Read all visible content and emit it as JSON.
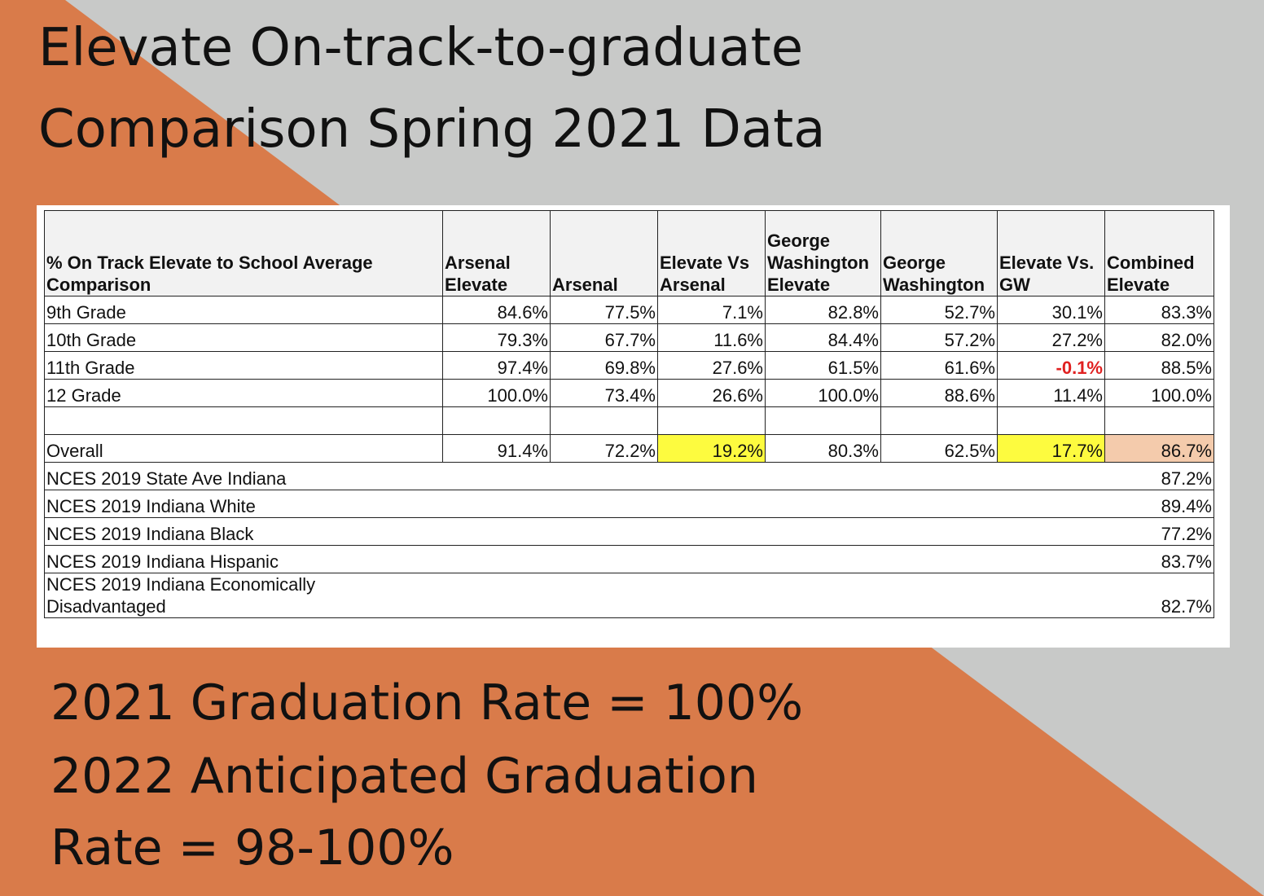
{
  "title_lines": [
    "Elevate On-track-to-graduate",
    "Comparison Spring 2021 Data"
  ],
  "table": {
    "header": [
      "% On Track Elevate to School Average Comparison",
      "Arsenal Elevate",
      "Arsenal",
      "Elevate Vs Arsenal",
      "George Washington Elevate",
      "George Washington",
      "Elevate Vs. GW",
      "Combined Elevate"
    ],
    "grade_rows": [
      [
        "9th Grade",
        "84.6%",
        "77.5%",
        "7.1%",
        "82.8%",
        "52.7%",
        "30.1%",
        "83.3%"
      ],
      [
        "10th Grade",
        "79.3%",
        "67.7%",
        "11.6%",
        "84.4%",
        "57.2%",
        "27.2%",
        "82.0%"
      ],
      [
        "11th Grade",
        "97.4%",
        "69.8%",
        "27.6%",
        "61.5%",
        "61.6%",
        "-0.1%",
        "88.5%"
      ],
      [
        "12 Grade",
        "100.0%",
        "73.4%",
        "26.6%",
        "100.0%",
        "88.6%",
        "11.4%",
        "100.0%"
      ]
    ],
    "overall_row": [
      "Overall",
      "91.4%",
      "72.2%",
      "19.2%",
      "80.3%",
      "62.5%",
      "17.7%",
      "86.7%"
    ],
    "nces_rows": [
      [
        "NCES 2019 State Ave Indiana",
        "87.2%"
      ],
      [
        "NCES 2019 Indiana White",
        "89.4%"
      ],
      [
        "NCES 2019 Indiana Black",
        "77.2%"
      ],
      [
        "NCES 2019 Indiana Hispanic",
        "83.7%"
      ],
      [
        "NCES 2019 Indiana Economically Disadvantaged",
        "82.7%"
      ]
    ]
  },
  "footer_lines": [
    "2021 Graduation Rate = 100%",
    "2022 Anticipated Graduation",
    "Rate = 98-100%"
  ]
}
